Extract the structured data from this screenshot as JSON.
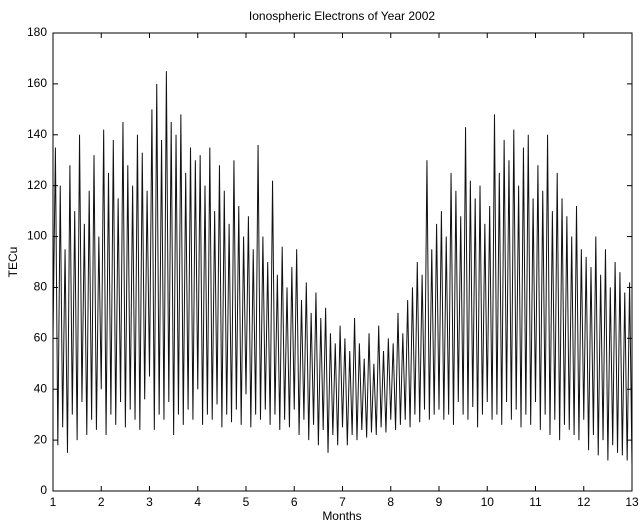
{
  "chart_data": {
    "type": "line",
    "title": "Ionospheric Electrons of Year 2002",
    "xlabel": "Months",
    "ylabel": "TECu",
    "color": "#111111",
    "xlim": [
      1,
      13
    ],
    "xticks": [
      1,
      2,
      3,
      4,
      5,
      6,
      7,
      8,
      9,
      10,
      11,
      12,
      13
    ],
    "ylim": [
      0,
      180
    ],
    "yticks": [
      0,
      20,
      40,
      60,
      80,
      100,
      120,
      140,
      160,
      180
    ],
    "x": [
      1,
      1.05,
      1.1,
      1.15,
      1.2,
      1.25,
      1.3,
      1.35,
      1.4,
      1.45,
      1.5,
      1.55,
      1.6,
      1.65,
      1.7,
      1.75,
      1.8,
      1.85,
      1.9,
      1.95,
      2,
      2.05,
      2.1,
      2.15,
      2.2,
      2.25,
      2.3,
      2.35,
      2.4,
      2.45,
      2.5,
      2.55,
      2.6,
      2.65,
      2.7,
      2.75,
      2.8,
      2.85,
      2.9,
      2.95,
      3,
      3.05,
      3.1,
      3.15,
      3.2,
      3.25,
      3.3,
      3.35,
      3.4,
      3.45,
      3.5,
      3.55,
      3.6,
      3.65,
      3.7,
      3.75,
      3.8,
      3.85,
      3.9,
      3.95,
      4,
      4.05,
      4.1,
      4.15,
      4.2,
      4.25,
      4.3,
      4.35,
      4.4,
      4.45,
      4.5,
      4.55,
      4.6,
      4.65,
      4.7,
      4.75,
      4.8,
      4.85,
      4.9,
      4.95,
      5,
      5.05,
      5.1,
      5.15,
      5.2,
      5.25,
      5.3,
      5.35,
      5.4,
      5.45,
      5.5,
      5.55,
      5.6,
      5.65,
      5.7,
      5.75,
      5.8,
      5.85,
      5.9,
      5.95,
      6,
      6.05,
      6.1,
      6.15,
      6.2,
      6.25,
      6.3,
      6.35,
      6.4,
      6.45,
      6.5,
      6.55,
      6.6,
      6.65,
      6.7,
      6.75,
      6.8,
      6.85,
      6.9,
      6.95,
      7,
      7.05,
      7.1,
      7.15,
      7.2,
      7.25,
      7.3,
      7.35,
      7.4,
      7.45,
      7.5,
      7.55,
      7.6,
      7.65,
      7.7,
      7.75,
      7.8,
      7.85,
      7.9,
      7.95,
      8,
      8.05,
      8.1,
      8.15,
      8.2,
      8.25,
      8.3,
      8.35,
      8.4,
      8.45,
      8.5,
      8.55,
      8.6,
      8.65,
      8.7,
      8.75,
      8.8,
      8.85,
      8.9,
      8.95,
      9,
      9.05,
      9.1,
      9.15,
      9.2,
      9.25,
      9.3,
      9.35,
      9.4,
      9.45,
      9.5,
      9.55,
      9.6,
      9.65,
      9.7,
      9.75,
      9.8,
      9.85,
      9.9,
      9.95,
      10,
      10.05,
      10.1,
      10.15,
      10.2,
      10.25,
      10.3,
      10.35,
      10.4,
      10.45,
      10.5,
      10.55,
      10.6,
      10.65,
      10.7,
      10.75,
      10.8,
      10.85,
      10.9,
      10.95,
      11,
      11.05,
      11.1,
      11.15,
      11.2,
      11.25,
      11.3,
      11.35,
      11.4,
      11.45,
      11.5,
      11.55,
      11.6,
      11.65,
      11.7,
      11.75,
      11.8,
      11.85,
      11.9,
      11.95,
      12,
      12.05,
      12.1,
      12.15,
      12.2,
      12.25,
      12.3,
      12.35,
      12.4,
      12.45,
      12.5,
      12.55,
      12.6,
      12.65,
      12.7,
      12.75,
      12.8,
      12.85,
      12.9,
      12.95,
      13
    ],
    "values": [
      60,
      135,
      18,
      120,
      25,
      95,
      15,
      128,
      30,
      110,
      20,
      140,
      35,
      105,
      22,
      118,
      28,
      132,
      24,
      100,
      40,
      142,
      22,
      125,
      30,
      138,
      26,
      115,
      35,
      145,
      25,
      128,
      32,
      120,
      28,
      140,
      24,
      133,
      36,
      118,
      45,
      150,
      24,
      160,
      30,
      138,
      28,
      165,
      35,
      145,
      22,
      140,
      30,
      148,
      26,
      125,
      32,
      135,
      28,
      130,
      40,
      132,
      26,
      120,
      30,
      135,
      28,
      110,
      34,
      128,
      25,
      118,
      30,
      105,
      27,
      130,
      32,
      112,
      26,
      100,
      38,
      108,
      25,
      95,
      30,
      136,
      28,
      100,
      32,
      90,
      26,
      122,
      30,
      85,
      24,
      96,
      28,
      80,
      25,
      88,
      32,
      95,
      22,
      75,
      28,
      82,
      20,
      70,
      26,
      78,
      18,
      68,
      24,
      72,
      15,
      62,
      22,
      58,
      18,
      65,
      25,
      60,
      18,
      55,
      22,
      68,
      20,
      58,
      24,
      52,
      21,
      62,
      23,
      50,
      22,
      65,
      25,
      55,
      23,
      60,
      28,
      58,
      24,
      70,
      26,
      62,
      28,
      75,
      25,
      80,
      30,
      90,
      27,
      85,
      32,
      130,
      28,
      95,
      30,
      105,
      32,
      110,
      28,
      100,
      30,
      125,
      26,
      118,
      35,
      108,
      30,
      143,
      28,
      122,
      33,
      115,
      25,
      120,
      30,
      105,
      35,
      112,
      28,
      148,
      30,
      125,
      26,
      138,
      35,
      130,
      28,
      142,
      32,
      120,
      25,
      135,
      30,
      140,
      26,
      115,
      35,
      128,
      24,
      118,
      30,
      140,
      22,
      110,
      28,
      125,
      20,
      115,
      26,
      108,
      24,
      100,
      22,
      112,
      20,
      95,
      28,
      92,
      16,
      88,
      22,
      100,
      14,
      85,
      20,
      95,
      12,
      80,
      18,
      90,
      15,
      86,
      14,
      78,
      12,
      82,
      10
    ]
  }
}
